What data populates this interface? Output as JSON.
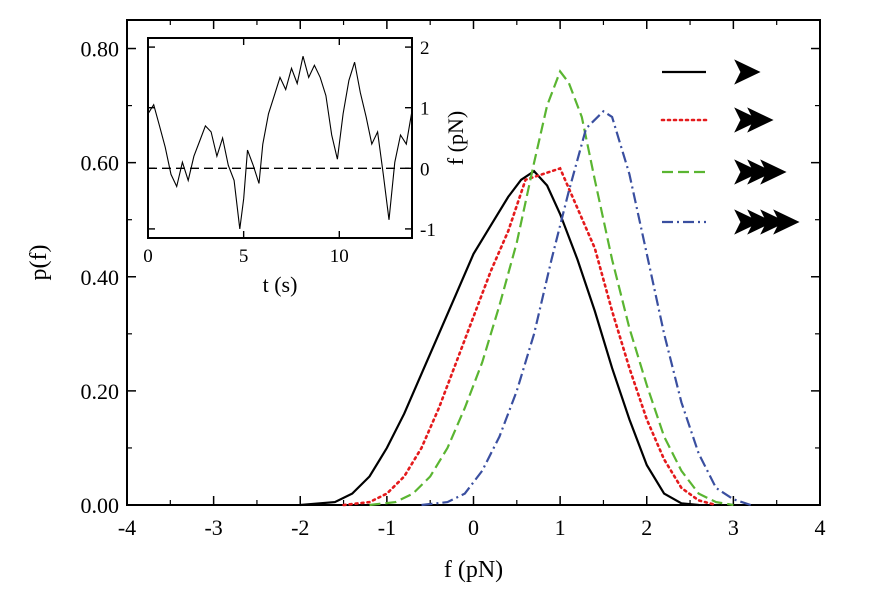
{
  "chart_data": [
    {
      "type": "line",
      "title": "",
      "xlabel": "f (pN)",
      "ylabel": "p(f)",
      "xlim": [
        -4,
        4
      ],
      "ylim": [
        0,
        0.85
      ],
      "xticks": [
        -4,
        -3,
        -2,
        -1,
        0,
        1,
        2,
        3,
        4
      ],
      "xtick_labels": [
        "-4",
        "-3",
        "-2",
        "-1",
        "0",
        "1",
        "2",
        "3",
        "4"
      ],
      "yticks": [
        0,
        0.2,
        0.4,
        0.6,
        0.8
      ],
      "ytick_labels": [
        "0.00",
        "0.20",
        "0.40",
        "0.60",
        "0.80"
      ],
      "grid": false,
      "legend": "top-right",
      "series": [
        {
          "color": "#000000",
          "dash": "solid",
          "legend_chevrons": 1,
          "points": [
            [
              -2.0,
              0.0
            ],
            [
              -1.6,
              0.005
            ],
            [
              -1.4,
              0.02
            ],
            [
              -1.2,
              0.05
            ],
            [
              -1.0,
              0.1
            ],
            [
              -0.8,
              0.16
            ],
            [
              -0.6,
              0.23
            ],
            [
              -0.4,
              0.3
            ],
            [
              -0.2,
              0.37
            ],
            [
              0.0,
              0.44
            ],
            [
              0.2,
              0.49
            ],
            [
              0.4,
              0.54
            ],
            [
              0.55,
              0.57
            ],
            [
              0.7,
              0.585
            ],
            [
              0.85,
              0.56
            ],
            [
              1.0,
              0.51
            ],
            [
              1.2,
              0.43
            ],
            [
              1.4,
              0.34
            ],
            [
              1.6,
              0.24
            ],
            [
              1.8,
              0.15
            ],
            [
              2.0,
              0.07
            ],
            [
              2.2,
              0.02
            ],
            [
              2.4,
              0.003
            ],
            [
              2.6,
              0.0
            ]
          ]
        },
        {
          "color": "#e41a1c",
          "dash": "dotted",
          "legend_chevrons": 2,
          "points": [
            [
              -1.5,
              0.0
            ],
            [
              -1.2,
              0.005
            ],
            [
              -1.0,
              0.02
            ],
            [
              -0.8,
              0.05
            ],
            [
              -0.6,
              0.1
            ],
            [
              -0.4,
              0.17
            ],
            [
              -0.2,
              0.25
            ],
            [
              0.0,
              0.33
            ],
            [
              0.2,
              0.41
            ],
            [
              0.4,
              0.48
            ],
            [
              0.6,
              0.57
            ],
            [
              0.8,
              0.58
            ],
            [
              1.0,
              0.59
            ],
            [
              1.2,
              0.52
            ],
            [
              1.4,
              0.45
            ],
            [
              1.6,
              0.34
            ],
            [
              1.8,
              0.24
            ],
            [
              2.0,
              0.15
            ],
            [
              2.2,
              0.08
            ],
            [
              2.4,
              0.03
            ],
            [
              2.6,
              0.008
            ],
            [
              2.8,
              0.0
            ]
          ]
        },
        {
          "color": "#5ab531",
          "dash": "dashed",
          "legend_chevrons": 3,
          "points": [
            [
              -1.2,
              0.0
            ],
            [
              -0.9,
              0.005
            ],
            [
              -0.7,
              0.02
            ],
            [
              -0.5,
              0.05
            ],
            [
              -0.3,
              0.1
            ],
            [
              -0.1,
              0.17
            ],
            [
              0.1,
              0.25
            ],
            [
              0.3,
              0.35
            ],
            [
              0.5,
              0.46
            ],
            [
              0.7,
              0.6
            ],
            [
              0.85,
              0.7
            ],
            [
              1.0,
              0.76
            ],
            [
              1.1,
              0.74
            ],
            [
              1.25,
              0.68
            ],
            [
              1.4,
              0.57
            ],
            [
              1.6,
              0.43
            ],
            [
              1.8,
              0.31
            ],
            [
              2.0,
              0.21
            ],
            [
              2.2,
              0.12
            ],
            [
              2.4,
              0.06
            ],
            [
              2.6,
              0.02
            ],
            [
              2.8,
              0.005
            ],
            [
              3.0,
              0.0
            ]
          ]
        },
        {
          "color": "#3a4fa0",
          "dash": "dashdot",
          "legend_chevrons": 4,
          "points": [
            [
              -0.6,
              0.0
            ],
            [
              -0.3,
              0.005
            ],
            [
              -0.1,
              0.02
            ],
            [
              0.1,
              0.06
            ],
            [
              0.3,
              0.12
            ],
            [
              0.5,
              0.2
            ],
            [
              0.7,
              0.3
            ],
            [
              0.9,
              0.43
            ],
            [
              1.1,
              0.55
            ],
            [
              1.3,
              0.66
            ],
            [
              1.5,
              0.69
            ],
            [
              1.6,
              0.68
            ],
            [
              1.8,
              0.58
            ],
            [
              2.0,
              0.44
            ],
            [
              2.2,
              0.3
            ],
            [
              2.4,
              0.18
            ],
            [
              2.6,
              0.09
            ],
            [
              2.8,
              0.03
            ],
            [
              3.0,
              0.01
            ],
            [
              3.2,
              0.0
            ]
          ]
        }
      ]
    },
    {
      "type": "line",
      "title": "",
      "xlabel": "t (s)",
      "ylabel": "f (pN)",
      "ylabel_side": "right",
      "xlim": [
        0,
        13.8
      ],
      "ylim": [
        -1.15,
        2.15
      ],
      "xticks": [
        0,
        5,
        10
      ],
      "xtick_labels": [
        "0",
        "5",
        "10"
      ],
      "yticks": [
        -1,
        0,
        1,
        2
      ],
      "ytick_labels": [
        "-1",
        "0",
        "1",
        "2"
      ],
      "reference_line": {
        "y": 0,
        "dash": "dashed"
      },
      "series": [
        {
          "color": "#000000",
          "dash": "solid",
          "points": [
            [
              0.0,
              0.9
            ],
            [
              0.3,
              1.05
            ],
            [
              0.6,
              0.7
            ],
            [
              0.9,
              0.35
            ],
            [
              1.2,
              -0.1
            ],
            [
              1.5,
              -0.3
            ],
            [
              1.8,
              0.1
            ],
            [
              2.1,
              -0.2
            ],
            [
              2.4,
              0.2
            ],
            [
              2.7,
              0.45
            ],
            [
              3.0,
              0.7
            ],
            [
              3.3,
              0.6
            ],
            [
              3.6,
              0.2
            ],
            [
              3.9,
              0.5
            ],
            [
              4.2,
              0.05
            ],
            [
              4.5,
              -0.2
            ],
            [
              4.8,
              -1.0
            ],
            [
              5.0,
              -0.5
            ],
            [
              5.2,
              0.3
            ],
            [
              5.5,
              0.05
            ],
            [
              5.8,
              -0.25
            ],
            [
              6.0,
              0.4
            ],
            [
              6.3,
              0.9
            ],
            [
              6.6,
              1.2
            ],
            [
              6.9,
              1.5
            ],
            [
              7.2,
              1.3
            ],
            [
              7.5,
              1.65
            ],
            [
              7.8,
              1.4
            ],
            [
              8.1,
              1.85
            ],
            [
              8.4,
              1.5
            ],
            [
              8.7,
              1.7
            ],
            [
              9.0,
              1.5
            ],
            [
              9.3,
              1.2
            ],
            [
              9.6,
              0.55
            ],
            [
              9.9,
              0.15
            ],
            [
              10.2,
              0.9
            ],
            [
              10.5,
              1.45
            ],
            [
              10.8,
              1.75
            ],
            [
              11.1,
              1.25
            ],
            [
              11.4,
              0.85
            ],
            [
              11.7,
              0.4
            ],
            [
              12.0,
              0.6
            ],
            [
              12.3,
              -0.1
            ],
            [
              12.6,
              -0.85
            ],
            [
              12.9,
              0.1
            ],
            [
              13.2,
              0.55
            ],
            [
              13.5,
              0.4
            ],
            [
              13.8,
              0.95
            ]
          ]
        }
      ]
    }
  ]
}
